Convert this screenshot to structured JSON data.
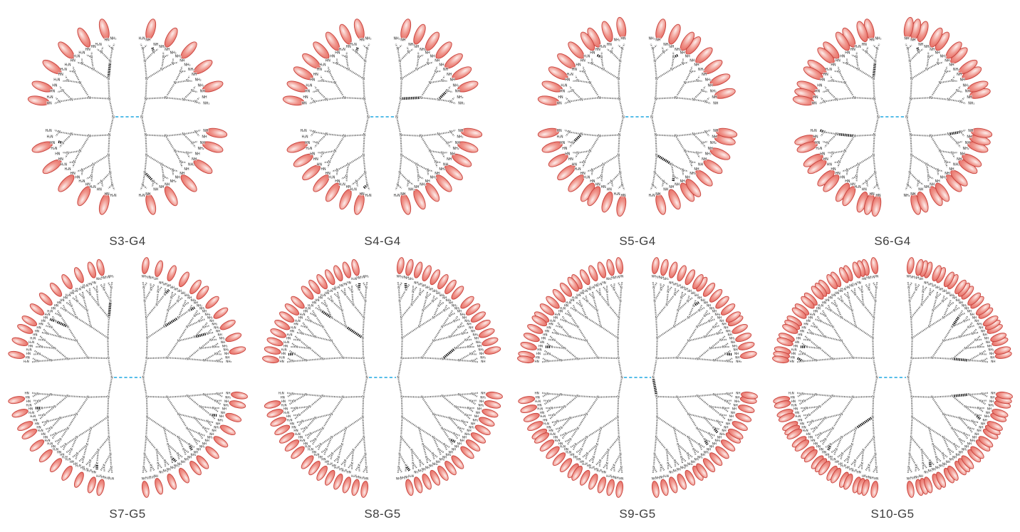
{
  "figure": {
    "background": "#ffffff",
    "panels_per_row": 4,
    "caption_color": "#3d3d3d"
  },
  "diagram_data": {
    "type": "diagram",
    "subject": "Radial dendrimer structures of generations G4 and G5 with amine-terminated branches; red oval surface ligands increase in number from S3 to S10",
    "core_atom_label": "N",
    "branch_atom_label": "N",
    "core_bond_style": "blue dashed",
    "terminal_group_labels": [
      "NH₂",
      "H₂N",
      "NH",
      "HN"
    ],
    "colors": {
      "background": "#ffffff",
      "bond": "#3e3e3e",
      "bold_bond": "#000000",
      "core_bond": "#3fb4e6",
      "atom_text": "#2f2f2f",
      "oval_edge": "#dd4a42",
      "oval_mid": "#f0968d",
      "oval_highlight": "#fdeeec",
      "oval_stroke": "#c8423c"
    },
    "rows": [
      {
        "dendrimer_generation": "G4",
        "structure_labels": [
          "S3-G4",
          "S4-G4",
          "S5-G4",
          "S6-G4"
        ]
      },
      {
        "dendrimer_generation": "G5",
        "structure_labels": [
          "S7-G5",
          "S8-G5",
          "S9-G5",
          "S10-G5"
        ]
      }
    ],
    "structures": [
      {
        "label": "S3-G4",
        "generation": 4,
        "surface_sites": 64,
        "ligand_ovals": 22
      },
      {
        "label": "S4-G4",
        "generation": 4,
        "surface_sites": 64,
        "ligand_ovals": 30
      },
      {
        "label": "S5-G4",
        "generation": 4,
        "surface_sites": 64,
        "ligand_ovals": 35
      },
      {
        "label": "S6-G4",
        "generation": 4,
        "surface_sites": 64,
        "ligand_ovals": 44
      },
      {
        "label": "S7-G5",
        "generation": 5,
        "surface_sites": 128,
        "ligand_ovals": 45
      },
      {
        "label": "S8-G5",
        "generation": 5,
        "surface_sites": 128,
        "ligand_ovals": 60
      },
      {
        "label": "S9-G5",
        "generation": 5,
        "surface_sites": 128,
        "ligand_ovals": 70
      },
      {
        "label": "S10-G5",
        "generation": 5,
        "surface_sites": 128,
        "ligand_ovals": 90
      }
    ]
  }
}
